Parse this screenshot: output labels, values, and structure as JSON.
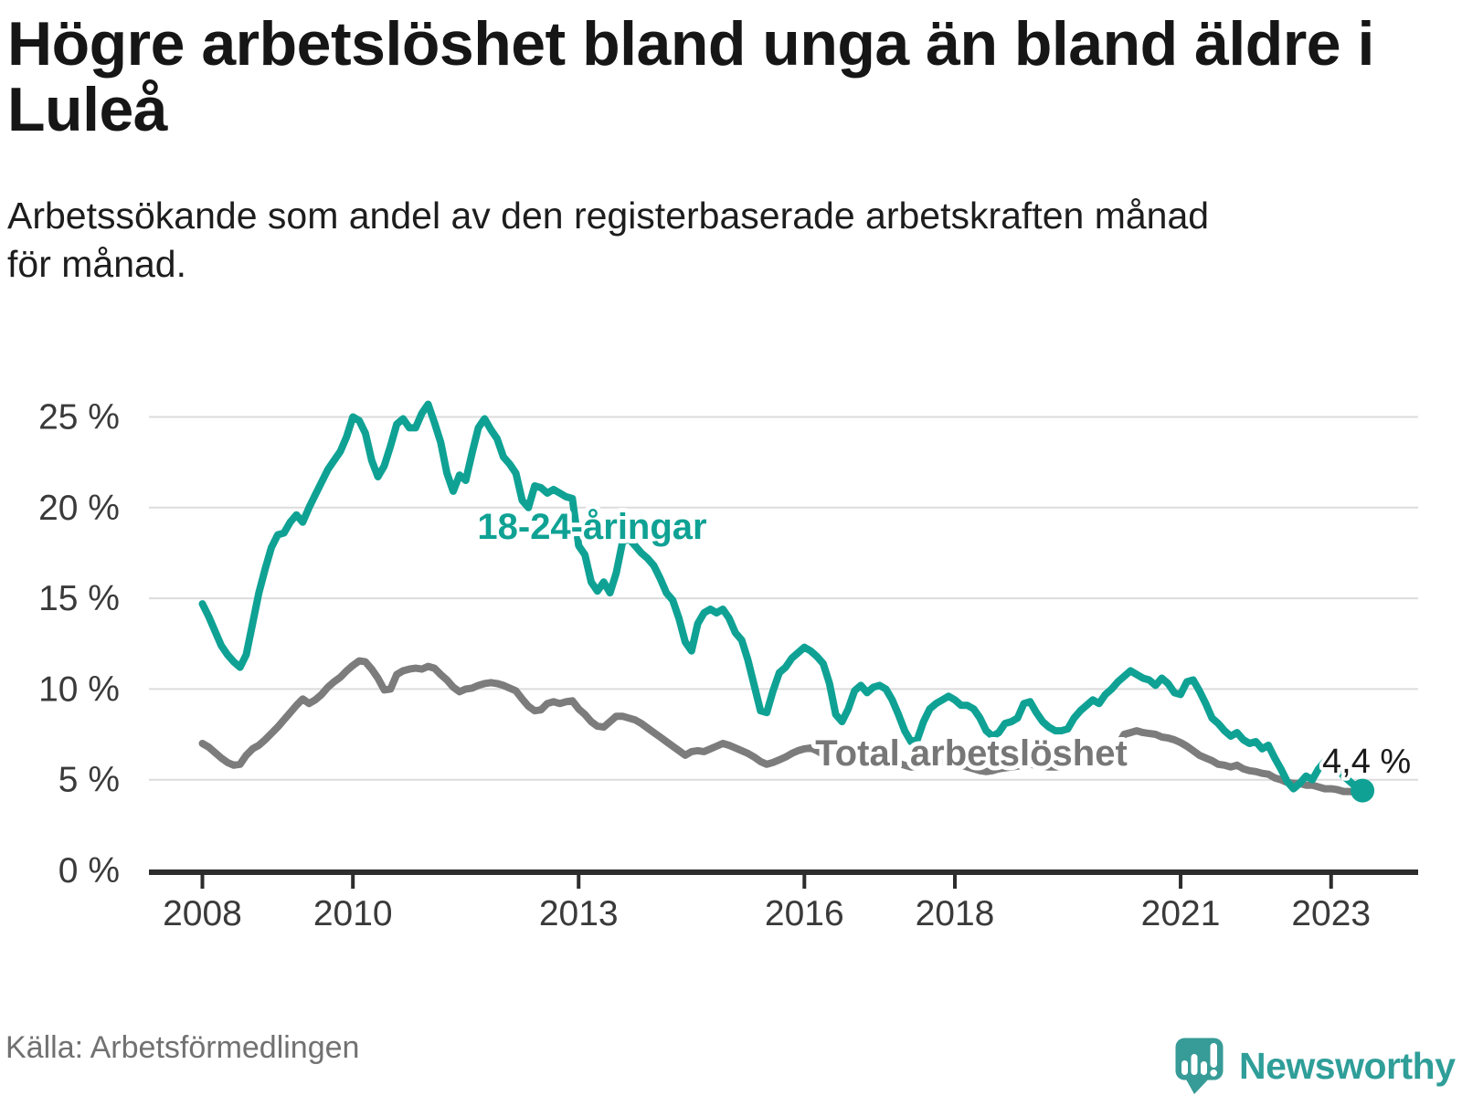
{
  "chart_data": {
    "type": "line",
    "title": "Högre arbetslöshet bland unga än bland äldre i\nLuleå",
    "subtitle": "Arbetssökande som andel av den registerbaserade arbetskraften månad\nför månad.",
    "source": "Källa: Arbetsförmedlingen",
    "brand": "Newsworthy",
    "frequency": "monthly",
    "x_start_year": 2008,
    "ylim": [
      0,
      26.8
    ],
    "grid": "horizontal",
    "x_ticks": [
      {
        "year": 2008,
        "label": "2008"
      },
      {
        "year": 2010,
        "label": "2010"
      },
      {
        "year": 2013,
        "label": "2013"
      },
      {
        "year": 2016,
        "label": "2016"
      },
      {
        "year": 2018,
        "label": "2018"
      },
      {
        "year": 2021,
        "label": "2021"
      },
      {
        "year": 2023,
        "label": "2023"
      }
    ],
    "y_ticks": [
      {
        "value": 0,
        "label": "0 %"
      },
      {
        "value": 5,
        "label": "5 %"
      },
      {
        "value": 10,
        "label": "10 %"
      },
      {
        "value": 15,
        "label": "15 %"
      },
      {
        "value": 20,
        "label": "20 %"
      },
      {
        "value": 25,
        "label": "25 %"
      }
    ],
    "annotations": {
      "youth_label": "18-24-åringar",
      "total_label": "Total arbetslöshet",
      "end_label": "4,4 %"
    },
    "series": [
      {
        "id": "total",
        "name": "Total arbetslöshet",
        "color": "#7c7c7c",
        "values": [
          7.0,
          6.8,
          6.5,
          6.2,
          5.95,
          5.8,
          5.85,
          6.35,
          6.7,
          6.9,
          7.2,
          7.55,
          7.9,
          8.3,
          8.7,
          9.1,
          9.45,
          9.2,
          9.4,
          9.7,
          10.1,
          10.4,
          10.65,
          11.0,
          11.3,
          11.55,
          11.5,
          11.1,
          10.6,
          9.95,
          10.0,
          10.8,
          11.0,
          11.1,
          11.15,
          11.1,
          11.25,
          11.15,
          10.8,
          10.5,
          10.1,
          9.85,
          10.0,
          10.05,
          10.2,
          10.3,
          10.35,
          10.3,
          10.2,
          10.05,
          9.9,
          9.45,
          9.05,
          8.8,
          8.85,
          9.2,
          9.3,
          9.2,
          9.3,
          9.35,
          8.9,
          8.6,
          8.2,
          7.95,
          7.9,
          8.2,
          8.5,
          8.5,
          8.4,
          8.3,
          8.1,
          7.85,
          7.6,
          7.35,
          7.1,
          6.85,
          6.6,
          6.35,
          6.55,
          6.6,
          6.55,
          6.7,
          6.85,
          7.0,
          6.9,
          6.75,
          6.6,
          6.45,
          6.25,
          6.0,
          5.85,
          5.95,
          6.1,
          6.25,
          6.45,
          6.6,
          6.7,
          6.75,
          6.6,
          6.4,
          6.2,
          6.1,
          6.1,
          6.2,
          6.3,
          6.3,
          6.25,
          6.2,
          6.2,
          6.15,
          6.0,
          5.9,
          5.8,
          5.7,
          5.75,
          5.85,
          5.9,
          5.95,
          5.95,
          5.9,
          5.85,
          5.8,
          5.7,
          5.6,
          5.5,
          5.45,
          5.5,
          5.6,
          5.65,
          5.7,
          5.75,
          5.8,
          5.85,
          5.8,
          5.75,
          5.7,
          5.7,
          5.75,
          5.85,
          5.95,
          6.0,
          6.05,
          6.1,
          6.1,
          6.2,
          6.3,
          6.9,
          7.5,
          7.6,
          7.7,
          7.6,
          7.55,
          7.5,
          7.35,
          7.3,
          7.2,
          7.05,
          6.85,
          6.6,
          6.35,
          6.2,
          6.05,
          5.85,
          5.8,
          5.7,
          5.8,
          5.6,
          5.5,
          5.45,
          5.35,
          5.3,
          5.1,
          5.0,
          4.85,
          4.8,
          4.8,
          4.7,
          4.7,
          4.6,
          4.5,
          4.5,
          4.45,
          4.35,
          4.35,
          4.3,
          4.3
        ]
      },
      {
        "id": "youth",
        "name": "18-24-åringar",
        "color": "#0fa294",
        "values": [
          14.7,
          14.0,
          13.2,
          12.4,
          11.9,
          11.5,
          11.2,
          11.9,
          13.6,
          15.3,
          16.6,
          17.8,
          18.5,
          18.6,
          19.2,
          19.6,
          19.2,
          20.0,
          20.7,
          21.4,
          22.1,
          22.6,
          23.1,
          23.9,
          25.0,
          24.8,
          24.1,
          22.6,
          21.7,
          22.3,
          23.4,
          24.6,
          24.9,
          24.4,
          24.4,
          25.2,
          25.7,
          24.7,
          23.6,
          21.9,
          20.9,
          21.8,
          21.5,
          23.0,
          24.4,
          24.9,
          24.3,
          23.8,
          22.8,
          22.4,
          21.9,
          20.4,
          20.0,
          21.2,
          21.1,
          20.8,
          21.0,
          20.8,
          20.6,
          20.5,
          17.9,
          17.4,
          15.9,
          15.4,
          15.9,
          15.3,
          16.4,
          18.1,
          18.3,
          17.9,
          17.5,
          17.2,
          16.8,
          16.1,
          15.3,
          14.9,
          13.9,
          12.6,
          12.1,
          13.6,
          14.2,
          14.4,
          14.2,
          14.4,
          13.9,
          13.1,
          12.7,
          11.6,
          10.2,
          8.8,
          8.7,
          9.9,
          10.9,
          11.2,
          11.7,
          12.0,
          12.3,
          12.1,
          11.8,
          11.4,
          10.3,
          8.6,
          8.2,
          8.9,
          9.9,
          10.2,
          9.8,
          10.1,
          10.2,
          10.0,
          9.4,
          8.6,
          7.7,
          7.1,
          7.2,
          8.2,
          8.9,
          9.2,
          9.4,
          9.6,
          9.4,
          9.1,
          9.1,
          8.9,
          8.4,
          7.7,
          7.4,
          7.6,
          8.1,
          8.2,
          8.4,
          9.2,
          9.3,
          8.7,
          8.2,
          7.9,
          7.7,
          7.7,
          7.8,
          8.4,
          8.8,
          9.1,
          9.4,
          9.2,
          9.7,
          10.0,
          10.4,
          10.7,
          11.0,
          10.8,
          10.6,
          10.5,
          10.2,
          10.6,
          10.3,
          9.8,
          9.7,
          10.4,
          10.5,
          9.9,
          9.2,
          8.4,
          8.1,
          7.7,
          7.4,
          7.6,
          7.2,
          7.0,
          7.1,
          6.7,
          6.9,
          6.2,
          5.6,
          4.9,
          4.5,
          4.8,
          5.2,
          5.0,
          5.6,
          6.0,
          5.9,
          5.6,
          5.2,
          4.9,
          4.6,
          4.4
        ]
      }
    ]
  },
  "colors": {
    "youth": "#0fa294",
    "total": "#7c7c7c",
    "grid": "#dcdcdd",
    "axis": "#2d2d2d",
    "tick_text": "#3a3a3a",
    "end_label_text": "#1a1a1a",
    "logo": "#2f9e99"
  }
}
